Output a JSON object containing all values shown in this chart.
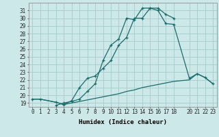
{
  "xlabel": "Humidex (Indice chaleur)",
  "xlim": [
    -0.5,
    23.5
  ],
  "ylim": [
    18.5,
    32.0
  ],
  "xticks": [
    0,
    1,
    2,
    3,
    4,
    5,
    6,
    7,
    8,
    9,
    10,
    11,
    12,
    13,
    14,
    15,
    16,
    17,
    18,
    20,
    21,
    22,
    23
  ],
  "yticks": [
    19,
    20,
    21,
    22,
    23,
    24,
    25,
    26,
    27,
    28,
    29,
    30,
    31
  ],
  "bg_color": "#cce8e8",
  "grid_color": "#aacfcf",
  "line_color": "#1a6b6b",
  "curve1_x": [
    0,
    1,
    3,
    4,
    5,
    6,
    7,
    8,
    9,
    10,
    11,
    12,
    13,
    14,
    15,
    16,
    17,
    18
  ],
  "curve1_y": [
    19.5,
    19.5,
    19.1,
    18.8,
    19.3,
    21.0,
    22.2,
    22.5,
    23.5,
    24.5,
    26.5,
    27.5,
    30.0,
    30.0,
    31.3,
    31.3,
    30.5,
    30.0
  ],
  "curve2_x": [
    3,
    4,
    5,
    6,
    7,
    8,
    9,
    10,
    11,
    12,
    13,
    14,
    15,
    16,
    17,
    18,
    20,
    21,
    22,
    23
  ],
  "curve2_y": [
    18.7,
    19.0,
    19.2,
    19.5,
    20.5,
    21.5,
    24.5,
    26.5,
    27.3,
    30.0,
    29.8,
    31.3,
    31.3,
    31.0,
    29.3,
    29.2,
    22.2,
    22.8,
    22.3,
    21.5
  ],
  "curve3_x": [
    0,
    1,
    3,
    4,
    5,
    6,
    7,
    8,
    9,
    10,
    11,
    12,
    13,
    14,
    15,
    16,
    17,
    18,
    20,
    21,
    22,
    23
  ],
  "curve3_y": [
    19.5,
    19.5,
    19.1,
    18.8,
    19.0,
    19.2,
    19.4,
    19.6,
    19.8,
    20.0,
    20.2,
    20.5,
    20.7,
    21.0,
    21.2,
    21.4,
    21.6,
    21.8,
    22.0,
    22.8,
    22.3,
    21.5
  ]
}
